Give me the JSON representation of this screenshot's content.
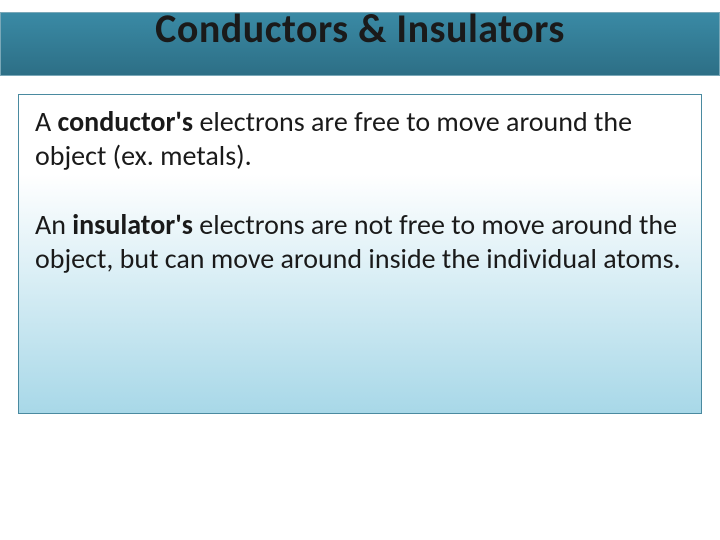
{
  "slide": {
    "title": "Conductors & Insulators",
    "title_bar": {
      "background_gradient_top": "#3a8aa5",
      "background_gradient_bottom": "#2d6f86",
      "border_color": "#7aa8b8",
      "text_color": "#1a1a1a",
      "fontsize": 40,
      "fontweight": 700
    },
    "content_box": {
      "background_gradient_top": "#ffffff",
      "background_gradient_bottom": "#a8d8e8",
      "border_color": "#4a8aa0"
    },
    "paragraphs": [
      {
        "pre": "A ",
        "bold": "conductor's",
        "post": " electrons are free to move around the object (ex. metals)."
      },
      {
        "pre": "An ",
        "bold": "insulator's",
        "post": " electrons are not free to move around the object, but can move around inside the individual atoms."
      }
    ],
    "body_fontsize": 28,
    "body_color": "#1a1a1a",
    "slide_background": "#ffffff"
  }
}
